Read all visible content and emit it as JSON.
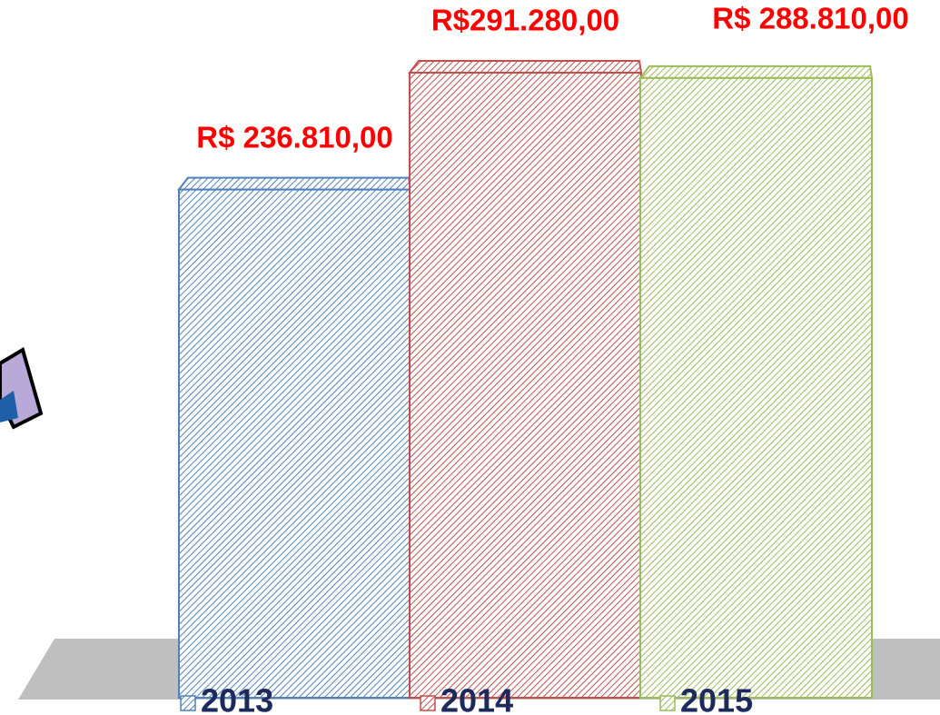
{
  "chart_data": {
    "type": "bar",
    "categories": [
      null
    ],
    "series": [
      {
        "name": "2013",
        "color": "#4f81bd",
        "values": [
          236810
        ],
        "value_labels": [
          "R$ 236.810,00"
        ]
      },
      {
        "name": "2014",
        "color": "#c0504d",
        "values": [
          291280
        ],
        "value_labels": [
          "R$291.280,00"
        ]
      },
      {
        "name": "2015",
        "color": "#9bbb59",
        "values": [
          288810
        ],
        "value_labels": [
          "R$ 288.810,00"
        ]
      }
    ],
    "label_color": "#ff0000"
  }
}
